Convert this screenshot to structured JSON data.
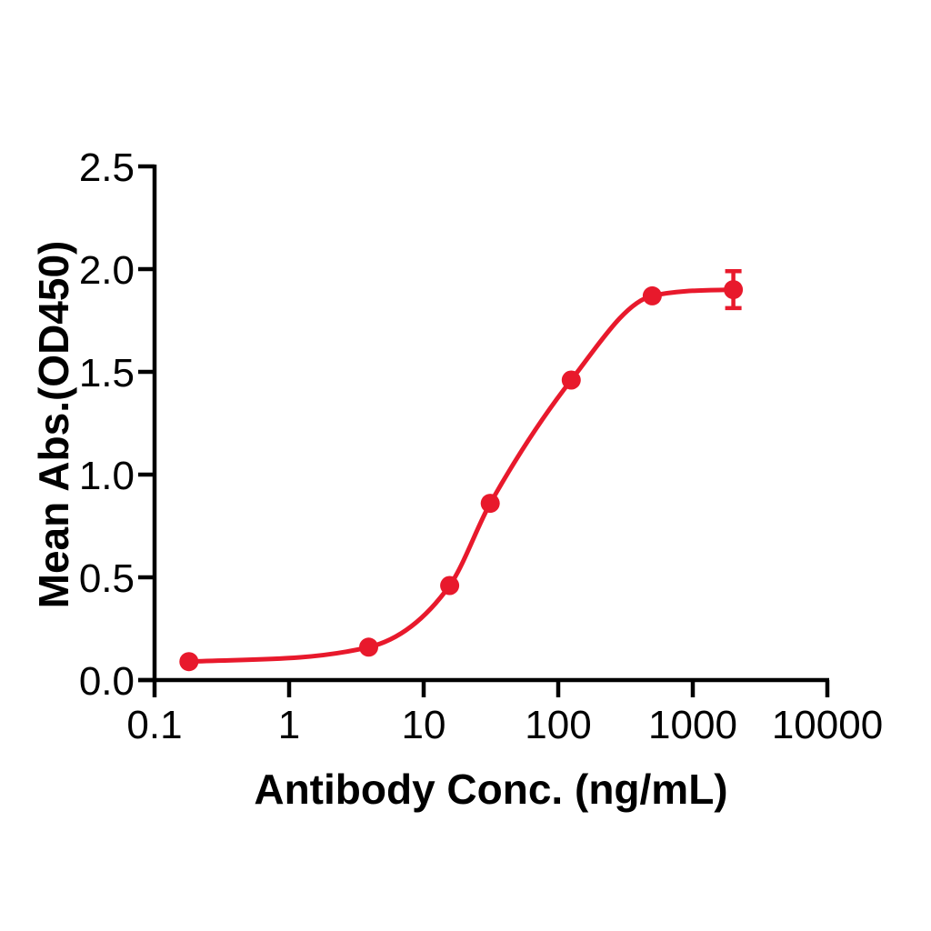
{
  "figure": {
    "background_color": "#ffffff",
    "plot_style": "GraphPad-Prism-like scatter with sigmoid fit, no grid, no legend"
  },
  "chart_data": {
    "type": "scatter",
    "subtype": "dose-response 4PL sigmoid fit through points",
    "title": "",
    "xlabel": "Antibody Conc. (ng/mL)",
    "ylabel": "Mean Abs.(OD450)",
    "x_scale": "log10",
    "xlim": [
      0.1,
      10000
    ],
    "ylim": [
      0.0,
      2.5
    ],
    "grid": false,
    "legend": false,
    "x_ticks": [
      {
        "value": 0.1,
        "label": "0.1"
      },
      {
        "value": 1,
        "label": "1"
      },
      {
        "value": 10,
        "label": "10"
      },
      {
        "value": 100,
        "label": "100"
      },
      {
        "value": 1000,
        "label": "1000"
      },
      {
        "value": 10000,
        "label": "10000"
      }
    ],
    "y_ticks": [
      {
        "value": 0.0,
        "label": "0.0"
      },
      {
        "value": 0.5,
        "label": "0.5"
      },
      {
        "value": 1.0,
        "label": "1.0"
      },
      {
        "value": 1.5,
        "label": "1.5"
      },
      {
        "value": 2.0,
        "label": "2.0"
      },
      {
        "value": 2.5,
        "label": "2.5"
      }
    ],
    "series": [
      {
        "color": "#E8192C",
        "marker": "filled-circle",
        "line": "smooth sigmoid fit",
        "points": [
          {
            "x": 0.18,
            "y": 0.09
          },
          {
            "x": 3.9,
            "y": 0.16
          },
          {
            "x": 15.6,
            "y": 0.46
          },
          {
            "x": 31.25,
            "y": 0.86
          },
          {
            "x": 125,
            "y": 1.46
          },
          {
            "x": 500,
            "y": 1.87
          },
          {
            "x": 2000,
            "y": 1.9,
            "err": 0.09
          }
        ]
      }
    ],
    "axis_color": "#000000"
  }
}
